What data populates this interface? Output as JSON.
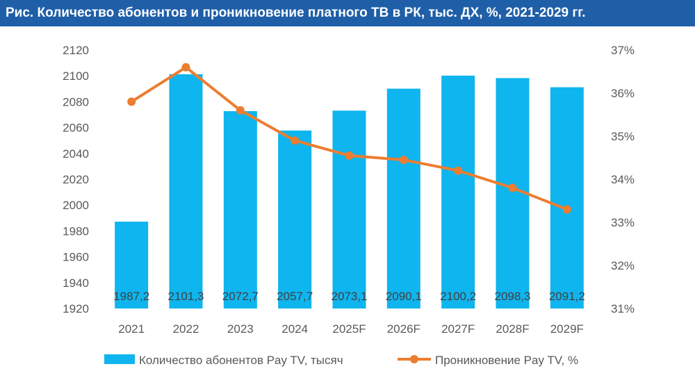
{
  "title": "Рис. Количество абонентов и проникновение платного ТВ в РК, тыс. ДХ, %, 2021-2029 гг.",
  "colors": {
    "title_bg": "#1f5fa8",
    "bar": "#0fb5ee",
    "line": "#ed7d31",
    "text": "#595959"
  },
  "chart_data": {
    "type": "bar",
    "categories": [
      "2021",
      "2022",
      "2023",
      "2024",
      "2025F",
      "2026F",
      "2027F",
      "2028F",
      "2029F"
    ],
    "series": [
      {
        "name": "Количество абонентов Pay TV, тысяч",
        "type": "bar",
        "axis": "left",
        "values": [
          1987.2,
          2101.3,
          2072.7,
          2057.7,
          2073.1,
          2090.1,
          2100.2,
          2098.3,
          2091.2
        ],
        "labels": [
          "1987,2",
          "2101,3",
          "2072,7",
          "2057,7",
          "2073,1",
          "2090,1",
          "2100,2",
          "2098,3",
          "2091,2"
        ]
      },
      {
        "name": "Проникновение Pay TV, %",
        "type": "line",
        "axis": "right",
        "values": [
          35.8,
          36.6,
          35.6,
          34.9,
          34.55,
          34.45,
          34.2,
          33.8,
          33.3
        ]
      }
    ],
    "y_left": {
      "min": 1920,
      "max": 2120,
      "ticks": [
        "1920",
        "1940",
        "1960",
        "1980",
        "2000",
        "2020",
        "2040",
        "2060",
        "2080",
        "2100",
        "2120"
      ]
    },
    "y_right": {
      "min": 31,
      "max": 37,
      "ticks": [
        "31%",
        "32%",
        "33%",
        "34%",
        "35%",
        "36%",
        "37%"
      ]
    },
    "grid": false,
    "legend_position": "bottom"
  }
}
